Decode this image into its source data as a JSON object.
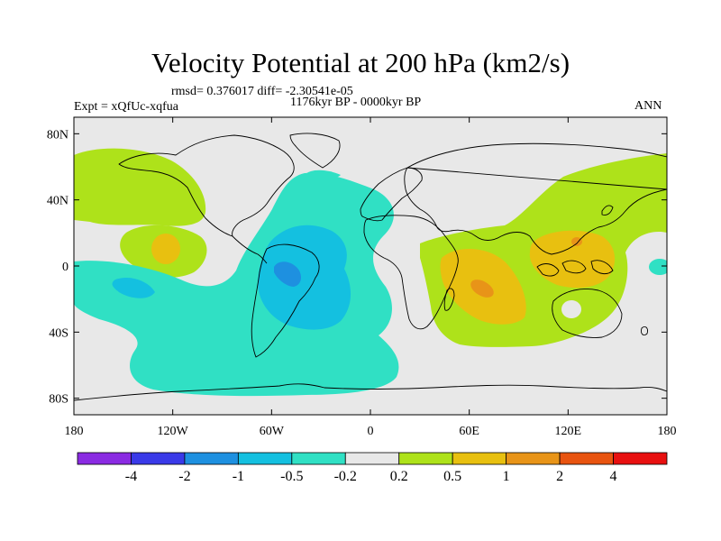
{
  "title": "Velocity Potential at 200 hPa (km2/s)",
  "stats": "rmsd= 0.376017 diff= -2.30541e-05",
  "period": "1176kyr BP - 0000kyr BP",
  "experiment": "Expt = xQfUc-xqfua",
  "season": "ANN",
  "axes": {
    "x_ticks": [
      {
        "lon": -180,
        "label": "180"
      },
      {
        "lon": -120,
        "label": "120W"
      },
      {
        "lon": -60,
        "label": "60W"
      },
      {
        "lon": 0,
        "label": "0"
      },
      {
        "lon": 60,
        "label": "60E"
      },
      {
        "lon": 120,
        "label": "120E"
      },
      {
        "lon": 180,
        "label": "180"
      }
    ],
    "y_ticks": [
      {
        "lat": 80,
        "label": "80N"
      },
      {
        "lat": 40,
        "label": "40N"
      },
      {
        "lat": 0,
        "label": "0"
      },
      {
        "lat": -40,
        "label": "40S"
      },
      {
        "lat": -80,
        "label": "80S"
      }
    ]
  },
  "colorbar": {
    "colors": [
      "#8a2be2",
      "#3a3ae8",
      "#1e90e0",
      "#14c0e0",
      "#30e0c4",
      "#e8e8e8",
      "#aee21a",
      "#e8c010",
      "#e89418",
      "#e85410",
      "#e81010"
    ],
    "labels": [
      "-4",
      "-2",
      "-1",
      "-0.5",
      "-0.2",
      "0.2",
      "0.5",
      "1",
      "2",
      "4"
    ]
  },
  "colors": {
    "land_outline": "#000000",
    "background_field": "#e8e8e8",
    "neg_light": "#30e0c4",
    "neg_mid": "#14c0e0",
    "neg_strong": "#1e90e0",
    "pos_light": "#aee21a",
    "pos_mid": "#e8c010",
    "pos_strong": "#e89418"
  }
}
